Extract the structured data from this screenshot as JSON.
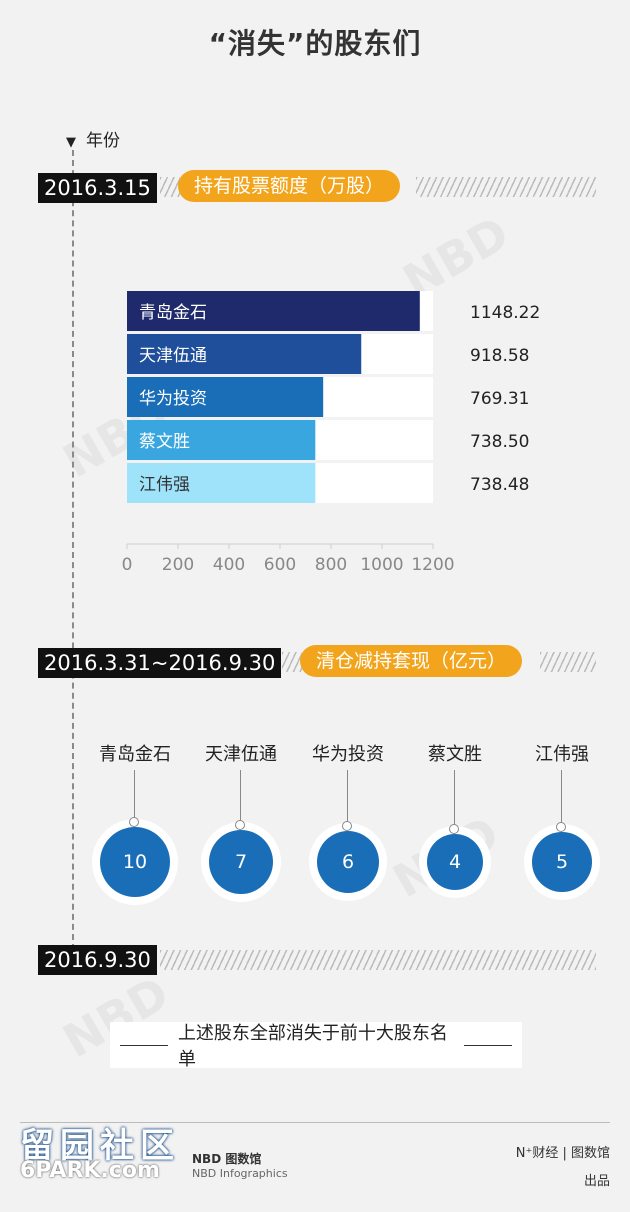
{
  "title": "“消失”的股东们",
  "axis_label": "年份",
  "section1": {
    "date": "2016.3.15",
    "pill": "持有股票额度（万股）"
  },
  "section2": {
    "date": "2016.3.31~2016.9.30",
    "pill": "清仓减持套现（亿元）"
  },
  "section3": {
    "date": "2016.9.30"
  },
  "note": "上述股东全部消失于前十大股东名单",
  "chart_data": [
    {
      "type": "bar",
      "orientation": "horizontal",
      "categories": [
        "青岛金石",
        "天津伍通",
        "华为投资",
        "蔡文胜",
        "江伟强"
      ],
      "values": [
        1148.22,
        918.58,
        769.31,
        738.5,
        738.48
      ],
      "value_labels": [
        "1148.22",
        "918.58",
        "769.31",
        "738.50",
        "738.48"
      ],
      "xlim": [
        0,
        1200
      ],
      "xticks": [
        "0",
        "200",
        "400",
        "600",
        "800",
        "1000",
        "1200"
      ],
      "bar_colors": [
        "#1e2a6b",
        "#1f4e9a",
        "#1a6eb8",
        "#3aa6df",
        "#9fe3fb"
      ],
      "label_colors": [
        "#ffffff",
        "#ffffff",
        "#ffffff",
        "#ffffff",
        "#333333"
      ],
      "title": "持有股票额度（万股）"
    },
    {
      "type": "bubble",
      "categories": [
        "青岛金石",
        "天津伍通",
        "华为投资",
        "蔡文胜",
        "江伟强"
      ],
      "values": [
        10,
        7,
        6,
        4,
        5
      ],
      "value_labels": [
        "10",
        "7",
        "6",
        "4",
        "5"
      ],
      "title": "清仓减持套现（亿元）"
    }
  ],
  "footer": {
    "credit_line1": "N⁺财经 | 图数馆",
    "credit_line2": "出品",
    "nbd": "NBD 图数馆",
    "nbd_sub": "NBD Infographics",
    "site_logo": "留园社区",
    "site_url": "6PARK.com"
  },
  "colors": {
    "accent": "#f2a51c",
    "bubble": "#1a6eb8",
    "dark": "#111111"
  }
}
